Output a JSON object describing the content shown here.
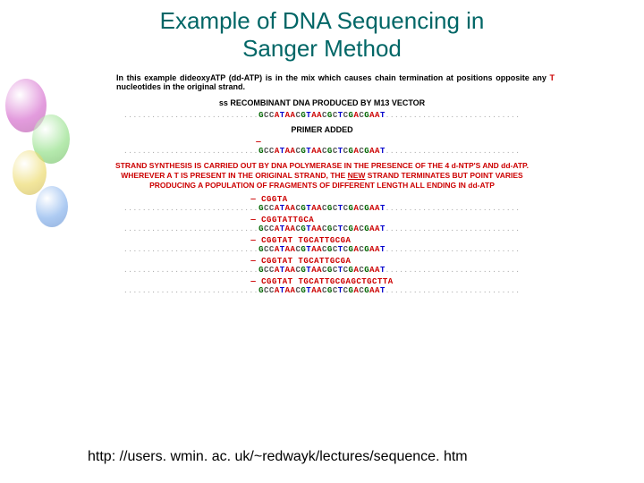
{
  "title_line1": "Example of DNA Sequencing in",
  "title_line2": "Sanger Method",
  "intro_prefix": "In this example dideoxyATP (dd-ATP) is in the mix which causes chain termination at positions opposite any ",
  "intro_T": "T",
  "intro_suffix": " nucleotides in the original strand.",
  "head1": "ss RECOMBINANT DNA PRODUCED BY M13 VECTOR",
  "head2": "PRIMER ADDED",
  "para3": "STRAND SYNTHESIS IS CARRIED OUT BY DNA POLYMERASE IN THE PRESENCE OF THE 4 d-NTP'S AND dd-ATP. WHEREVER A T IS PRESENT IN THE ORIGINAL STRAND, THE ",
  "para3_new": "NEW",
  "para3_rest": " STRAND TERMINATES BUT POINT VARIES PRODUCING A POPULATION OF FRAGMENTS OF DIFFERENT LENGTH ALL ENDING IN dd-ATP",
  "template_seq": "GCCATAACGTAACGCTCGACGAAT",
  "frag1": "CGGTA",
  "frag2": "CGGTATTGCA",
  "frag3": "CGGTAT TGCATTGCGA",
  "frag4": "CGGTAT TGCATTGCGA",
  "frag5": "CGGTAT TGCATTGCGAGCTGCTTA",
  "url": "http: //users. wmin. ac. uk/~redwayk/lectures/sequence. htm",
  "colors": {
    "title": "#006666",
    "red": "#cc0000",
    "blue": "#0000cc",
    "green": "#006600",
    "black": "#000000"
  }
}
